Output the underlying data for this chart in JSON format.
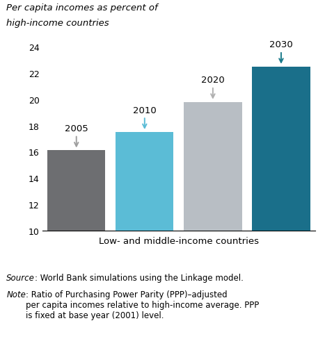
{
  "title_line1": "Per capita incomes as percent of",
  "title_line2": "high-income countries",
  "categories": [
    "2005",
    "2010",
    "2020",
    "2030"
  ],
  "values": [
    16.1,
    17.5,
    19.8,
    22.5
  ],
  "bar_colors": [
    "#6d6e71",
    "#5bbcd6",
    "#b8bec4",
    "#1a6f8a"
  ],
  "arrow_colors": [
    "#9e9e9e",
    "#5bbcd6",
    "#b0b0b0",
    "#1a7a8a"
  ],
  "xlabel": "Low- and middle-income countries",
  "ylim": [
    10,
    24
  ],
  "yticks": [
    10,
    12,
    14,
    16,
    18,
    20,
    22,
    24
  ],
  "source_italic": "Source",
  "source_rest": ": World Bank simulations using the Linkage model.",
  "note_italic": "Note",
  "note_rest": ": Ratio of Purchasing Power Parity (PPP)–adjusted\nper capita incomes relative to high-income average. PPP\nis fixed at base year (2001) level.",
  "background_color": "#ffffff"
}
